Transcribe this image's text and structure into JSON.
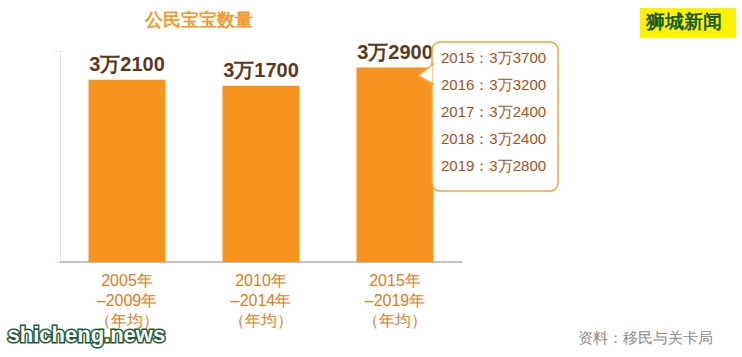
{
  "chart_data": {
    "type": "bar",
    "title": "公民宝宝数量",
    "categories": [
      "2005年\n–2009年\n（年均）",
      "2010年\n–2014年\n（年均）",
      "2015年\n–2019年\n（年均）"
    ],
    "values": [
      32100,
      31700,
      32900
    ],
    "value_labels": [
      "3万2100",
      "3万1700",
      "3万2900"
    ],
    "color": "#f7941d",
    "data_labels": true,
    "tick_labels": "x",
    "grid": false,
    "ylim": [
      20000,
      34000
    ],
    "yticks": [
      20000,
      34000
    ],
    "annotations": [
      "2015：3万3700",
      "2016：3万3200",
      "2017：3万2400",
      "2018：3万2400",
      "2019：3万2800"
    ],
    "source": "资料：移民与关卡局",
    "watermarks": [
      "狮城新闻",
      "shicheng.news"
    ]
  }
}
